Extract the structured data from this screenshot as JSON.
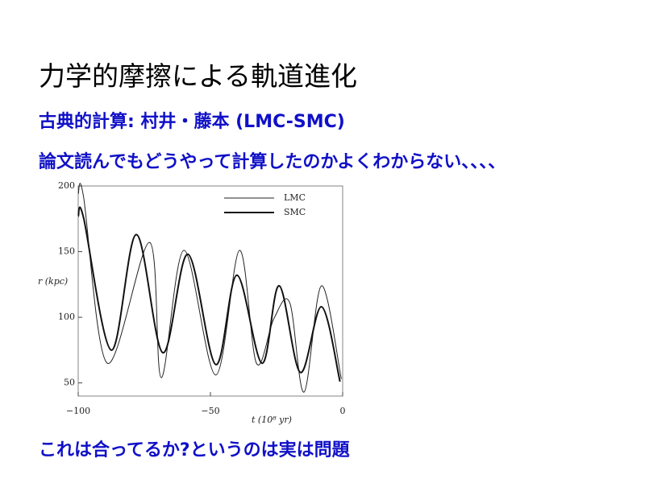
{
  "slide": {
    "title": "力学的摩擦による軌道進化",
    "subtitle": "古典的計算: 村井・藤本 (LMC-SMC)",
    "note": "論文読んでもどうやって計算したのかよくわからない、、、、",
    "footer": "これは合ってるか?というのは実は問題"
  },
  "chart_data": {
    "type": "line",
    "xlabel": "t (10⁸ yr)",
    "ylabel": "r (kpc)",
    "xlim": [
      -100,
      0
    ],
    "ylim": [
      40,
      200
    ],
    "xticks": [
      {
        "value": -100,
        "label": "−100"
      },
      {
        "value": -50,
        "label": "−50"
      },
      0
    ],
    "yticks": [
      50,
      100,
      150,
      200
    ],
    "series": [
      {
        "name": "LMC",
        "color": "#222222",
        "width": 1,
        "x": [
          -100,
          -98,
          -89,
          -73,
          -68.6,
          -60,
          -48,
          -39,
          -32.6,
          -26,
          -20,
          -14.6,
          -8,
          -0.5
        ],
        "values": [
          194,
          192,
          65,
          157,
          54,
          151,
          56,
          151,
          65,
          99,
          111,
          43,
          124,
          53
        ]
      },
      {
        "name": "SMC",
        "color": "#111111",
        "width": 2,
        "x": [
          -100,
          -98,
          -87.5,
          -78,
          -68,
          -58.5,
          -48,
          -40,
          -30.5,
          -24,
          -16,
          -8,
          -1
        ],
        "values": [
          177,
          176,
          75,
          163,
          73,
          148,
          64,
          132,
          65,
          124,
          58,
          108,
          51
        ]
      }
    ]
  }
}
